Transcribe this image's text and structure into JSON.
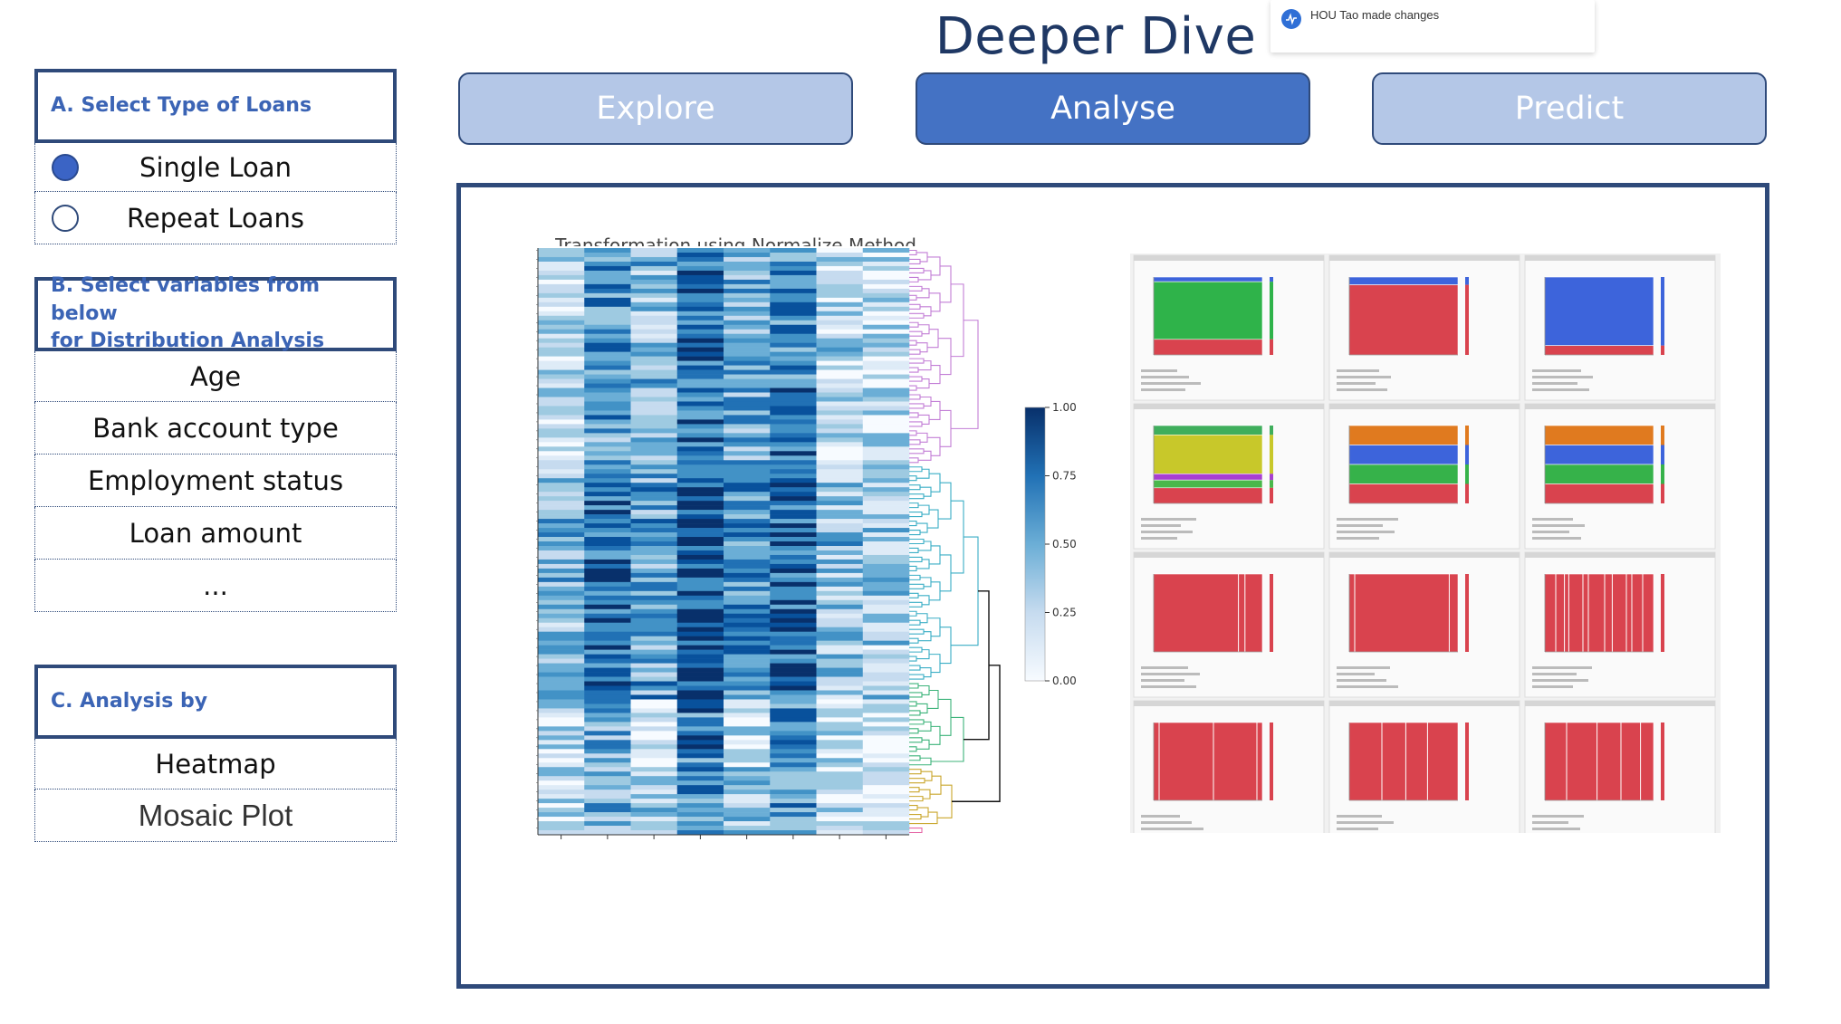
{
  "header": {
    "title": "Deeper Dive",
    "notification": "HOU Tao made changes"
  },
  "tabs": [
    {
      "label": "Explore",
      "active": false
    },
    {
      "label": "Analyse",
      "active": true
    },
    {
      "label": "Predict",
      "active": false
    }
  ],
  "sidebar": {
    "section_a": {
      "title": "A. Select Type of Loans",
      "options": [
        {
          "label": "Single Loan",
          "selected": true
        },
        {
          "label": "Repeat Loans",
          "selected": false
        }
      ]
    },
    "section_b": {
      "title_line1": "B. Select variables from below",
      "title_line2": "for Distribution Analysis",
      "items": [
        "Age",
        "Bank account type",
        "Employment status",
        "Loan amount",
        "..."
      ]
    },
    "section_c": {
      "title": "C. Analysis by",
      "items": [
        "Heatmap",
        "Mosaic Plot"
      ]
    }
  },
  "heatmap": {
    "caption": "...Transformation using Normalize Method",
    "colorbar_ticks": [
      "1.00",
      "0.75",
      "0.50",
      "0.25",
      "0.00"
    ],
    "colors": {
      "low": "#f7fbff",
      "high": "#08306b"
    }
  },
  "colors": {
    "accent": "#4472c4",
    "tab_inactive": "#b4c7e7",
    "border": "#2f4a7a",
    "title": "#1f3864",
    "mosaic_red": "#d9434e",
    "mosaic_green": "#2fb34a",
    "mosaic_blue": "#3d64db",
    "mosaic_yellow": "#c8c82a",
    "mosaic_orange": "#e07a1f"
  }
}
